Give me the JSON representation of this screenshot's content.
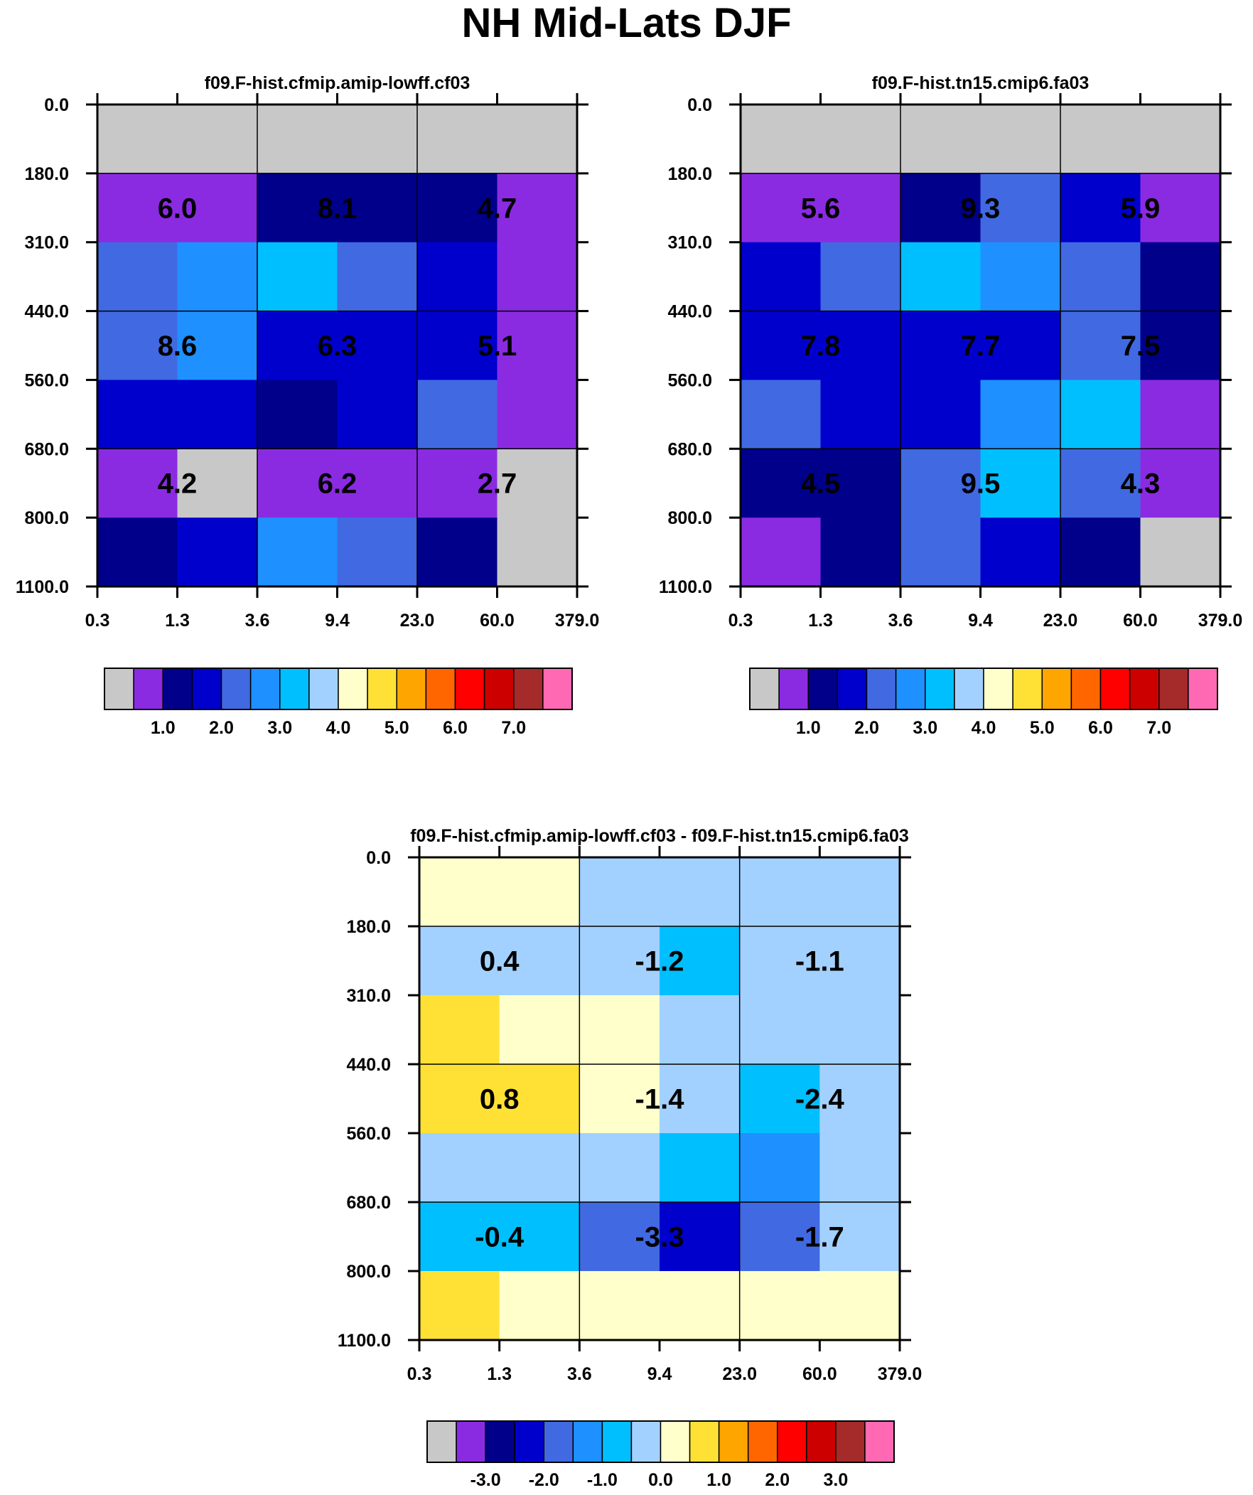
{
  "title": "NH Mid-Lats DJF",
  "palettes": {
    "abs": [
      "#c8c8c8",
      "#8a2be2",
      "#00008b",
      "#0000cd",
      "#4169e1",
      "#1e90ff",
      "#00bfff",
      "#a3d1ff",
      "#ffffcc",
      "#ffe135",
      "#ffa500",
      "#ff6600",
      "#ff0000",
      "#cd0000",
      "#a52a2a",
      "#ff69b4"
    ],
    "diff": [
      "#c8c8c8",
      "#8a2be2",
      "#00008b",
      "#0000cd",
      "#4169e1",
      "#1e90ff",
      "#00bfff",
      "#a3d1ff",
      "#ffffcc",
      "#ffe135",
      "#ffa500",
      "#ff6600",
      "#ff0000",
      "#cd0000",
      "#a52a2a",
      "#ff69b4"
    ]
  },
  "chart_data": [
    {
      "type": "heatmap",
      "title": "f09.F-hist.cfmip.amip-lowff.cf03",
      "x_ticks": [
        "0.3",
        "1.3",
        "3.6",
        "9.4",
        "23.0",
        "60.0",
        "379.0"
      ],
      "y_ticks": [
        "0.0",
        "180.0",
        "310.0",
        "440.0",
        "560.0",
        "680.0",
        "800.0",
        "1100.0"
      ],
      "cell_colors": [
        [
          0,
          0,
          0,
          0,
          0,
          0
        ],
        [
          1,
          1,
          2,
          2,
          2,
          1
        ],
        [
          4,
          5,
          6,
          4,
          3,
          1
        ],
        [
          4,
          5,
          3,
          3,
          3,
          1
        ],
        [
          3,
          3,
          2,
          3,
          4,
          1
        ],
        [
          1,
          0,
          1,
          1,
          1,
          0
        ],
        [
          2,
          3,
          5,
          4,
          2,
          0
        ]
      ],
      "block_values": [
        [
          "6.0",
          "8.1",
          "4.7"
        ],
        [
          "8.6",
          "6.3",
          "5.1"
        ],
        [
          "4.2",
          "6.2",
          "2.7"
        ]
      ],
      "colorbar_labels": [
        "1.0",
        "2.0",
        "3.0",
        "4.0",
        "5.0",
        "6.0",
        "7.0"
      ]
    },
    {
      "type": "heatmap",
      "title": "f09.F-hist.tn15.cmip6.fa03",
      "x_ticks": [
        "0.3",
        "1.3",
        "3.6",
        "9.4",
        "23.0",
        "60.0",
        "379.0"
      ],
      "y_ticks": [
        "0.0",
        "180.0",
        "310.0",
        "440.0",
        "560.0",
        "680.0",
        "800.0",
        "1100.0"
      ],
      "cell_colors": [
        [
          0,
          0,
          0,
          0,
          0,
          0
        ],
        [
          1,
          1,
          2,
          4,
          3,
          1
        ],
        [
          3,
          4,
          6,
          5,
          4,
          2
        ],
        [
          3,
          3,
          3,
          3,
          4,
          2
        ],
        [
          4,
          3,
          3,
          5,
          6,
          1
        ],
        [
          2,
          2,
          4,
          6,
          4,
          1
        ],
        [
          1,
          2,
          4,
          3,
          2,
          0
        ]
      ],
      "block_values": [
        [
          "5.6",
          "9.3",
          "5.9"
        ],
        [
          "7.8",
          "7.7",
          "7.5"
        ],
        [
          "4.5",
          "9.5",
          "4.3"
        ]
      ],
      "colorbar_labels": [
        "1.0",
        "2.0",
        "3.0",
        "4.0",
        "5.0",
        "6.0",
        "7.0"
      ]
    },
    {
      "type": "heatmap",
      "title": "f09.F-hist.cfmip.amip-lowff.cf03 - f09.F-hist.tn15.cmip6.fa03",
      "x_ticks": [
        "0.3",
        "1.3",
        "3.6",
        "9.4",
        "23.0",
        "60.0",
        "379.0"
      ],
      "y_ticks": [
        "0.0",
        "180.0",
        "310.0",
        "440.0",
        "560.0",
        "680.0",
        "800.0",
        "1100.0"
      ],
      "cell_colors": [
        [
          8,
          8,
          7,
          7,
          7,
          7
        ],
        [
          7,
          7,
          7,
          6,
          7,
          7
        ],
        [
          9,
          8,
          8,
          7,
          7,
          7
        ],
        [
          9,
          9,
          8,
          7,
          6,
          7
        ],
        [
          7,
          7,
          7,
          6,
          5,
          7
        ],
        [
          6,
          6,
          4,
          3,
          4,
          7
        ],
        [
          9,
          8,
          8,
          8,
          8,
          8
        ]
      ],
      "block_values": [
        [
          "0.4",
          "-1.2",
          "-1.1"
        ],
        [
          "0.8",
          "-1.4",
          "-2.4"
        ],
        [
          "-0.4",
          "-3.3",
          "-1.7"
        ]
      ],
      "colorbar_labels": [
        "-3.0",
        "-2.0",
        "-1.0",
        "0.0",
        "1.0",
        "2.0",
        "3.0"
      ]
    }
  ]
}
